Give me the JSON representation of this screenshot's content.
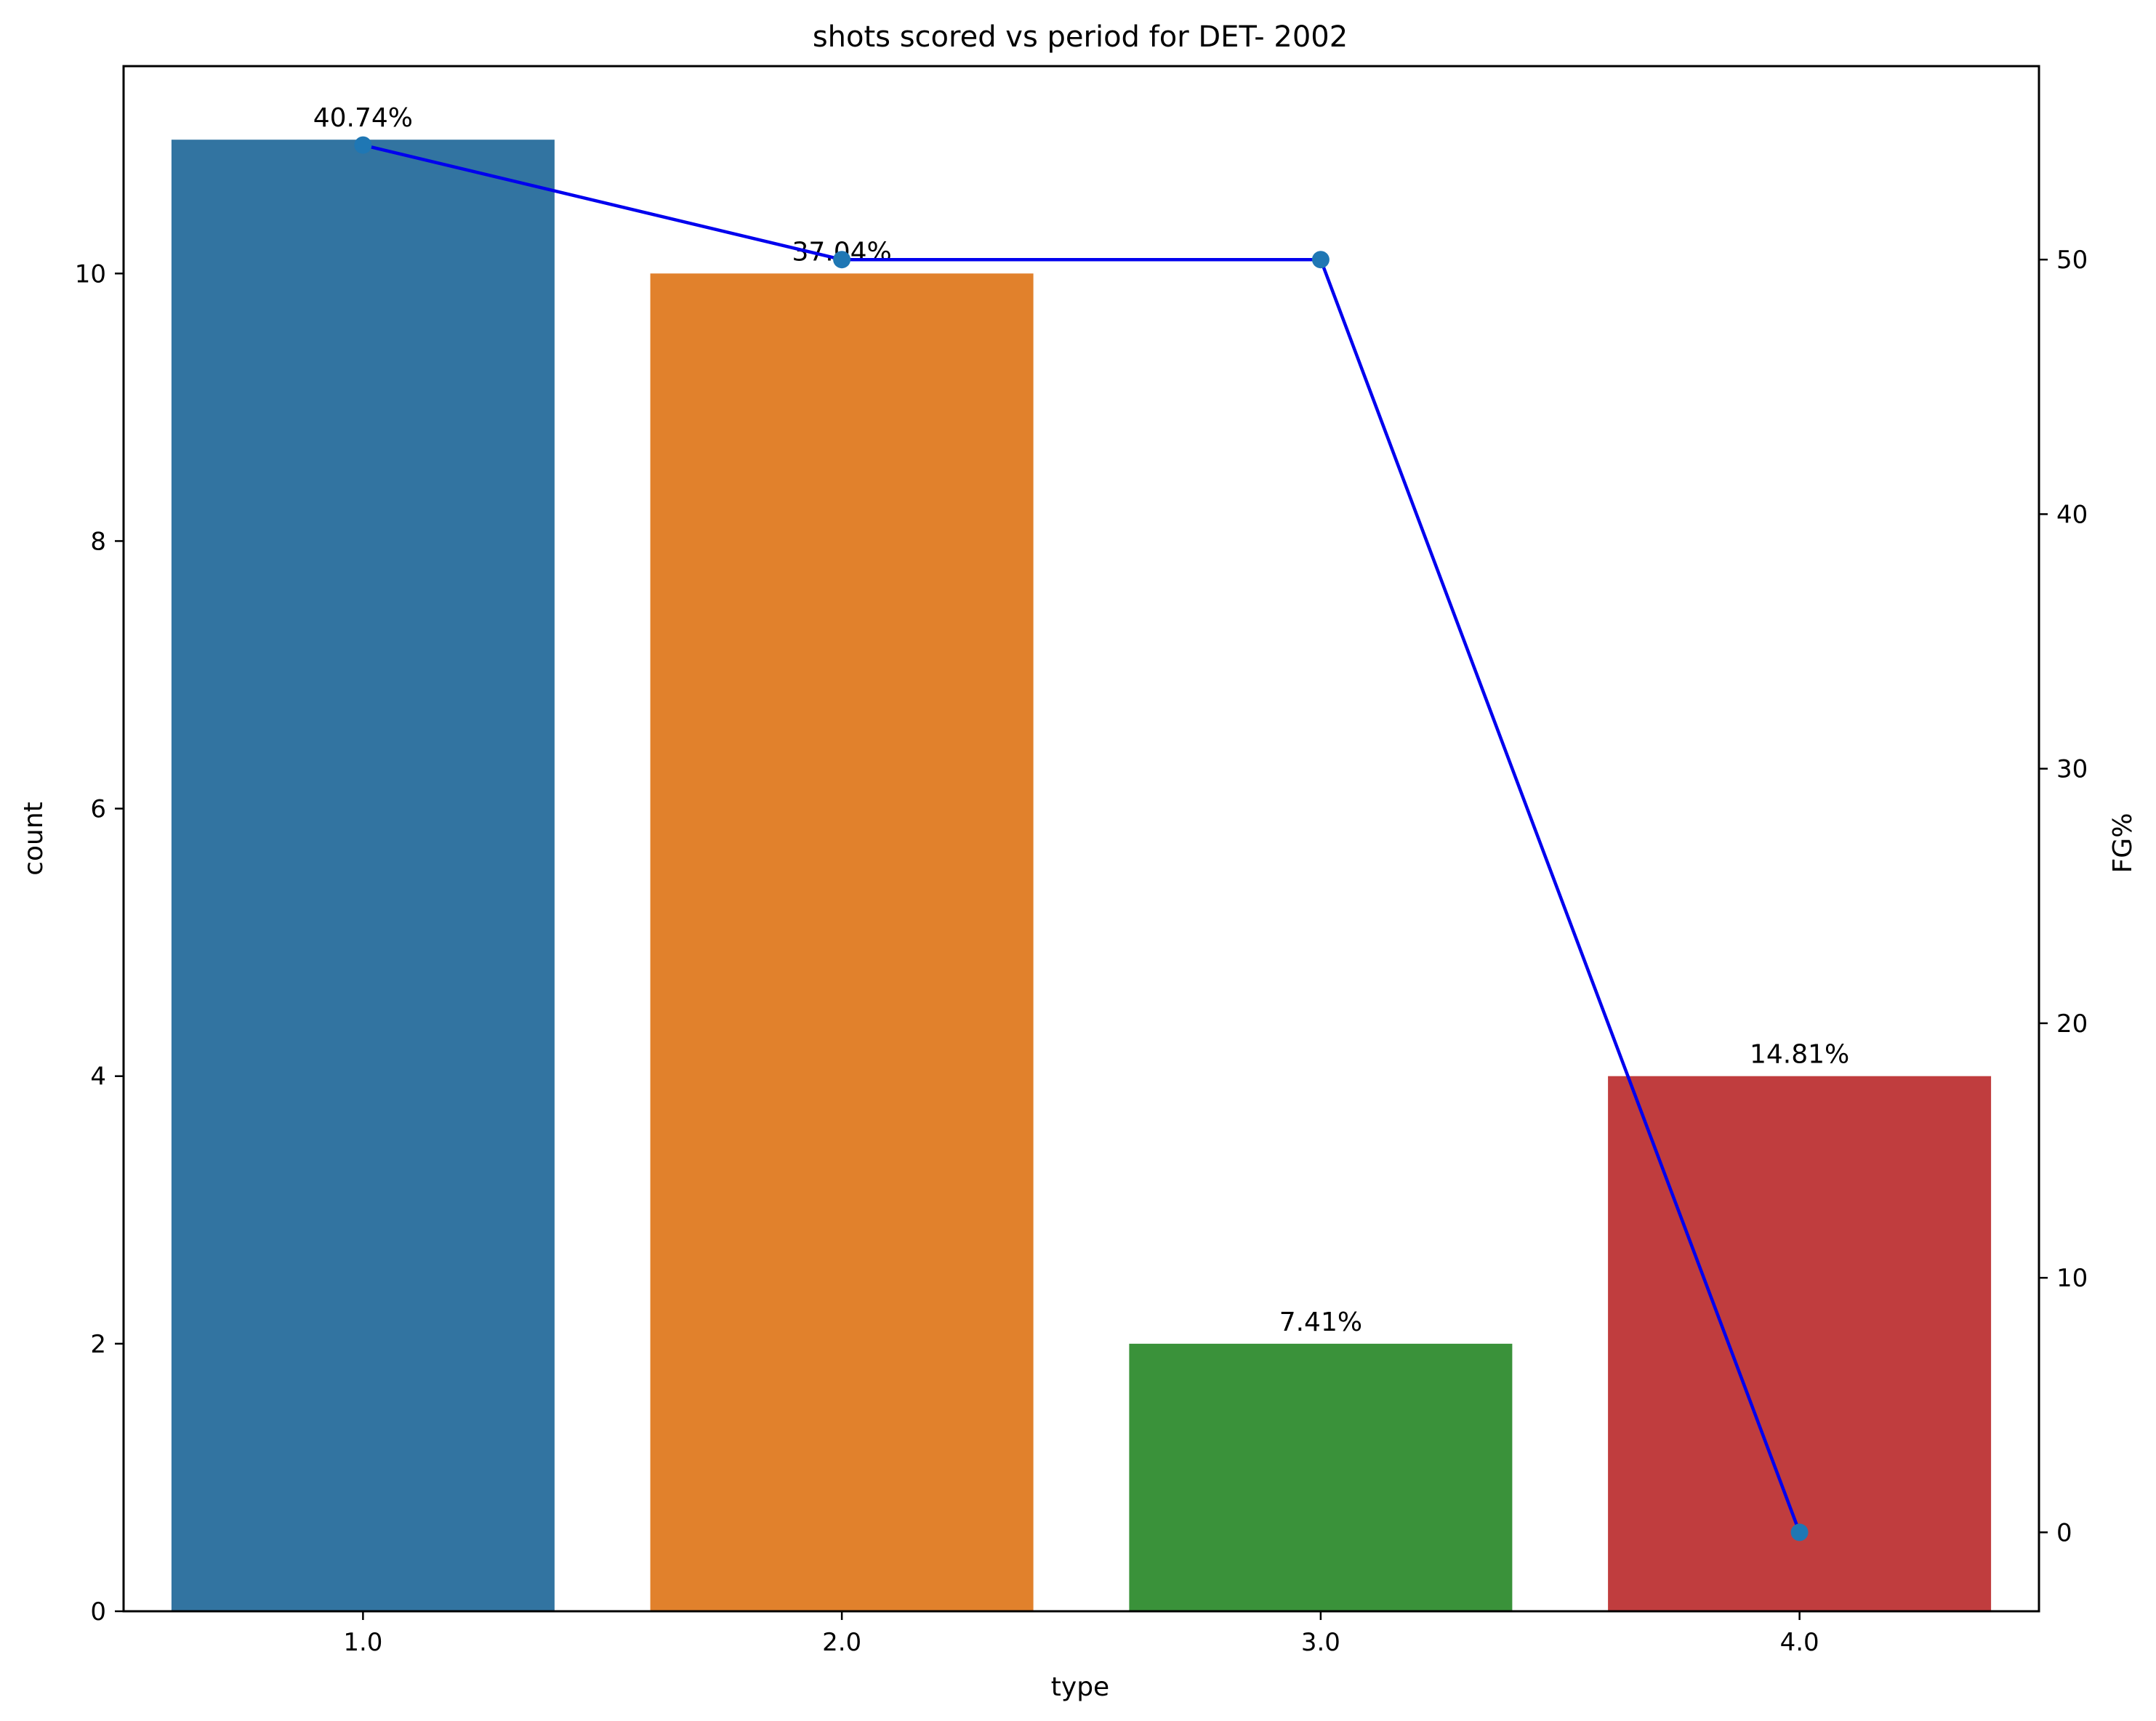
{
  "chart_data": {
    "type": "bar",
    "title": "shots scored vs period for DET- 2002",
    "xlabel": "type",
    "ylabel": "count",
    "y2label": "FG%",
    "categories": [
      "1.0",
      "2.0",
      "3.0",
      "4.0"
    ],
    "values": [
      11,
      10,
      2,
      4
    ],
    "bar_labels": [
      "40.74%",
      "37.04%",
      "7.41%",
      "14.81%"
    ],
    "bar_colors": [
      "#3274a1",
      "#e1812c",
      "#3a923a",
      "#c03d3e"
    ],
    "ylim": [
      0,
      11.55
    ],
    "yticks": [
      0,
      2,
      4,
      6,
      8,
      10
    ],
    "y2lim": [
      -3.1,
      57.6
    ],
    "y2ticks": [
      0,
      10,
      20,
      30,
      40,
      50
    ],
    "line_series": {
      "values": [
        54.5,
        50.0,
        50.0,
        0.0
      ],
      "line_color": "#0000ee",
      "marker_color": "#1f77b4"
    },
    "grid": false,
    "legend": "none"
  }
}
